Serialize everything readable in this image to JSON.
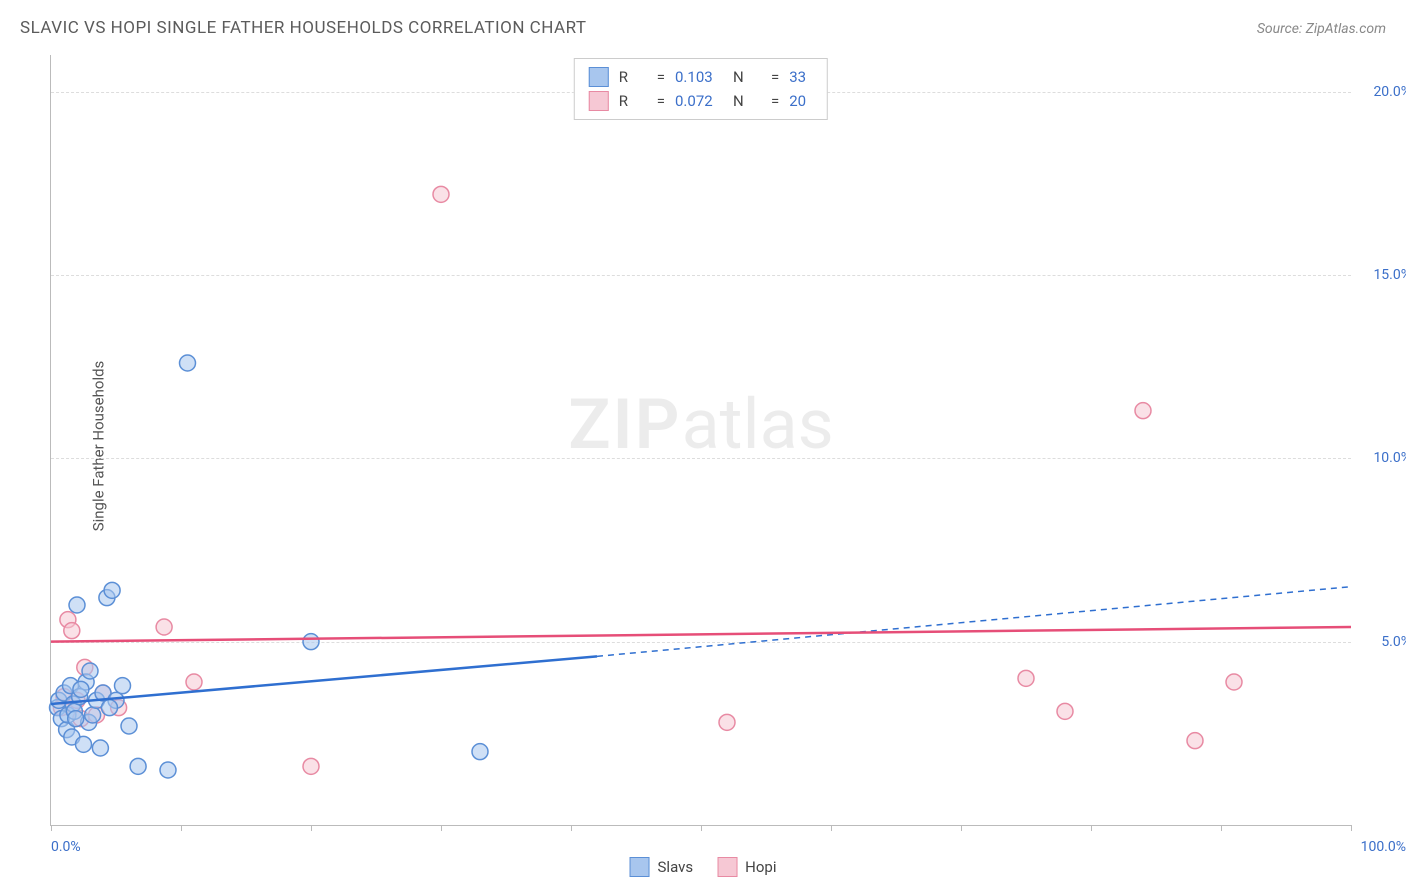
{
  "title": "SLAVIC VS HOPI SINGLE FATHER HOUSEHOLDS CORRELATION CHART",
  "source": "Source: ZipAtlas.com",
  "ylabel": "Single Father Households",
  "watermark_zip": "ZIP",
  "watermark_atlas": "atlas",
  "chart": {
    "type": "scatter",
    "background_color": "#ffffff",
    "grid_color": "#dddddd",
    "axis_color": "#bbbbbb",
    "tick_label_color": "#3b6fc9",
    "xlim": [
      0,
      100
    ],
    "ylim": [
      0,
      21
    ],
    "yticks": [
      5,
      10,
      15,
      20
    ],
    "ytick_labels": [
      "5.0%",
      "10.0%",
      "15.0%",
      "20.0%"
    ],
    "xticks": [
      0,
      10,
      20,
      30,
      40,
      50,
      60,
      70,
      80,
      90,
      100
    ],
    "xmin_label": "0.0%",
    "xmax_label": "100.0%",
    "marker_radius": 8,
    "marker_stroke_width": 1.5,
    "line_width": 2.5,
    "series": [
      {
        "name": "Slavs",
        "fill_color": "#a8c6ee",
        "stroke_color": "#5b8fd6",
        "line_color": "#2f6fd0",
        "R": "0.103",
        "N": "33",
        "trend_start": [
          0,
          3.3
        ],
        "trend_solid_end": [
          42,
          4.6
        ],
        "trend_dash_end": [
          100,
          6.5
        ],
        "points": [
          [
            0.5,
            3.2
          ],
          [
            0.6,
            3.4
          ],
          [
            0.8,
            2.9
          ],
          [
            1.0,
            3.6
          ],
          [
            1.2,
            2.6
          ],
          [
            1.3,
            3.0
          ],
          [
            1.5,
            3.8
          ],
          [
            1.6,
            2.4
          ],
          [
            1.7,
            3.3
          ],
          [
            1.8,
            3.1
          ],
          [
            2.0,
            6.0
          ],
          [
            2.2,
            3.5
          ],
          [
            2.5,
            2.2
          ],
          [
            2.7,
            3.9
          ],
          [
            2.9,
            2.8
          ],
          [
            3.0,
            4.2
          ],
          [
            3.2,
            3.0
          ],
          [
            3.5,
            3.4
          ],
          [
            3.8,
            2.1
          ],
          [
            4.0,
            3.6
          ],
          [
            4.3,
            6.2
          ],
          [
            4.7,
            6.4
          ],
          [
            5.0,
            3.4
          ],
          [
            5.5,
            3.8
          ],
          [
            6.0,
            2.7
          ],
          [
            6.7,
            1.6
          ],
          [
            9.0,
            1.5
          ],
          [
            10.5,
            12.6
          ],
          [
            20.0,
            5.0
          ],
          [
            33.0,
            2.0
          ],
          [
            4.5,
            3.2
          ],
          [
            1.9,
            2.9
          ],
          [
            2.3,
            3.7
          ]
        ]
      },
      {
        "name": "Hopi",
        "fill_color": "#f6c8d4",
        "stroke_color": "#e88aa3",
        "line_color": "#e64e78",
        "R": "0.072",
        "N": "20",
        "trend_start": [
          0,
          5.0
        ],
        "trend_solid_end": [
          100,
          5.4
        ],
        "trend_dash_end": null,
        "points": [
          [
            0.8,
            3.2
          ],
          [
            1.0,
            3.5
          ],
          [
            1.3,
            5.6
          ],
          [
            1.6,
            5.3
          ],
          [
            2.0,
            3.4
          ],
          [
            2.6,
            4.3
          ],
          [
            3.5,
            3.0
          ],
          [
            4.0,
            3.6
          ],
          [
            8.7,
            5.4
          ],
          [
            11.0,
            3.9
          ],
          [
            20.0,
            1.6
          ],
          [
            30.0,
            17.2
          ],
          [
            52.0,
            2.8
          ],
          [
            75.0,
            4.0
          ],
          [
            78.0,
            3.1
          ],
          [
            84.0,
            11.3
          ],
          [
            88.0,
            2.3
          ],
          [
            91.0,
            3.9
          ],
          [
            5.2,
            3.2
          ],
          [
            2.3,
            2.9
          ]
        ]
      }
    ]
  },
  "legend": {
    "slavs_label": "Slavs",
    "hopi_label": "Hopi"
  },
  "stats_labels": {
    "R": "R",
    "eq": "=",
    "N": "N"
  }
}
